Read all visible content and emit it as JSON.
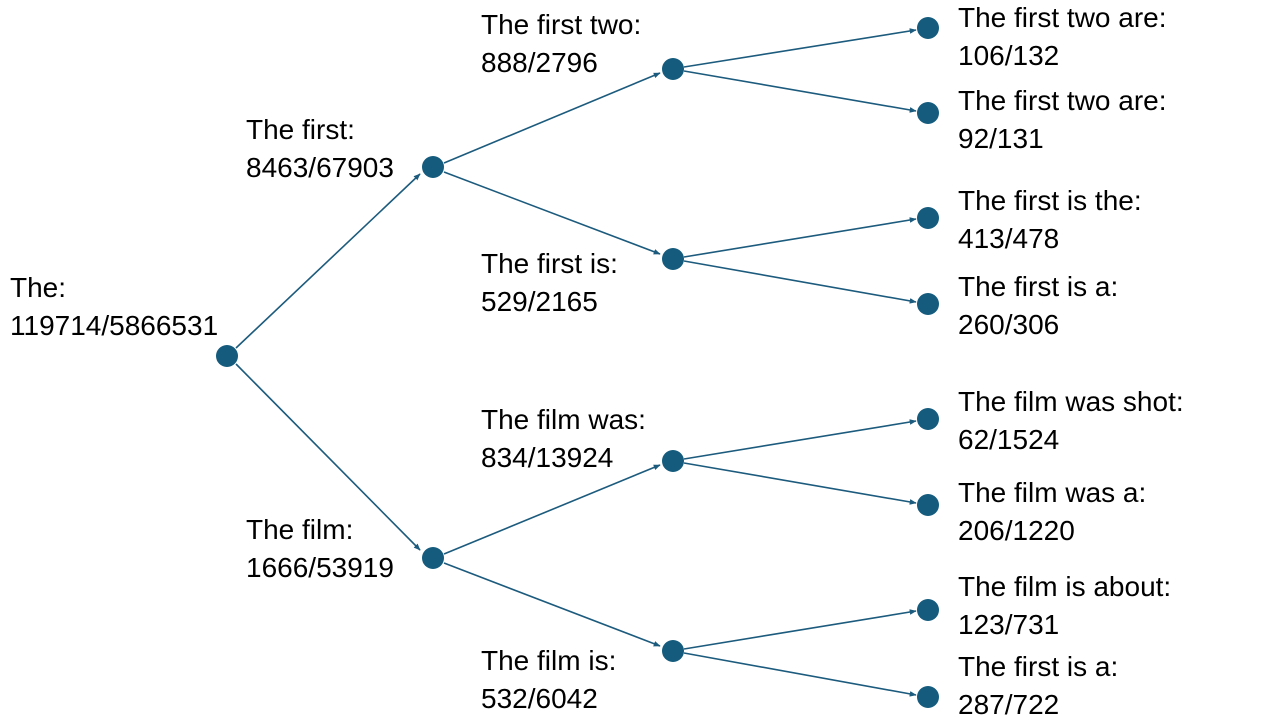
{
  "colors": {
    "node": "#145b7d",
    "edge": "#1c5b7d",
    "text": "#000000",
    "background": "#ffffff"
  },
  "tree": {
    "label": "The:",
    "count": "119714/5866531",
    "children": [
      {
        "label": "The first:",
        "count": "8463/67903",
        "children": [
          {
            "label": "The first two:",
            "count": "888/2796",
            "children": [
              {
                "label": "The first two are:",
                "count": "106/132"
              },
              {
                "label": "The first two are:",
                "count": "92/131"
              }
            ]
          },
          {
            "label": "The first is:",
            "count": "529/2165",
            "children": [
              {
                "label": "The first is the:",
                "count": "413/478"
              },
              {
                "label": "The first is a:",
                "count": "260/306"
              }
            ]
          }
        ]
      },
      {
        "label": "The film:",
        "count": "1666/53919",
        "children": [
          {
            "label": "The film was:",
            "count": "834/13924",
            "children": [
              {
                "label": "The film was shot:",
                "count": "62/1524"
              },
              {
                "label": "The film was a:",
                "count": "206/1220"
              }
            ]
          },
          {
            "label": "The film is:",
            "count": "532/6042",
            "children": [
              {
                "label": "The film is about:",
                "count": "123/731"
              },
              {
                "label": "The first is a:",
                "count": "287/722"
              }
            ]
          }
        ]
      }
    ]
  }
}
